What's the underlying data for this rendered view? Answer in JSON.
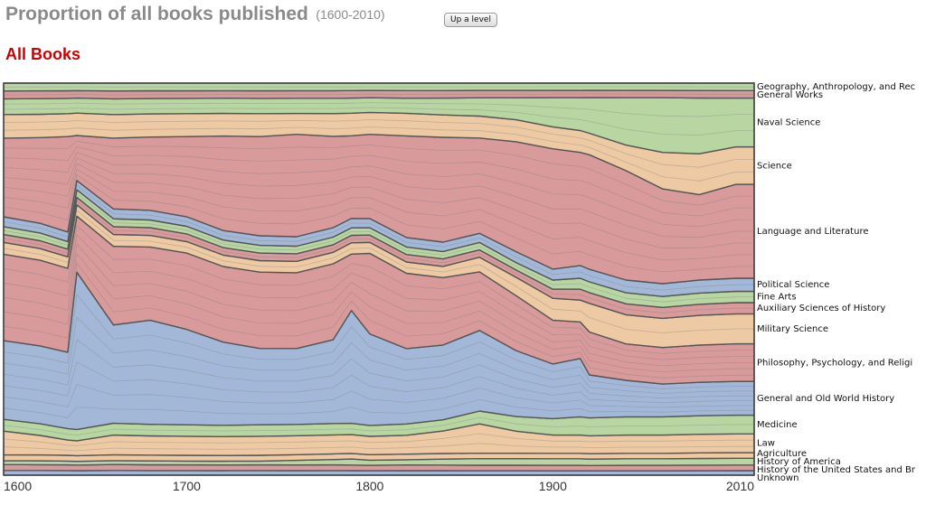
{
  "header": {
    "title": "Proportion of all books published",
    "range": "(1600-2010)",
    "up_button": "Up a level"
  },
  "subtitle": "All Books",
  "chart_data": {
    "type": "area",
    "stacked": true,
    "normalized": true,
    "x_ticks": [
      "1600",
      "1700",
      "1800",
      "1900",
      "2010"
    ],
    "xlim": [
      1600,
      2010
    ],
    "ylim": [
      0,
      1
    ],
    "x": [
      1600,
      1620,
      1635,
      1640,
      1660,
      1680,
      1700,
      1720,
      1740,
      1760,
      1780,
      1790,
      1800,
      1820,
      1840,
      1860,
      1880,
      1900,
      1915,
      1920,
      1940,
      1960,
      1980,
      2000,
      2010
    ],
    "series": [
      {
        "name": "Unknown",
        "color": "#a3b8d8",
        "values": [
          0.012,
          0.012,
          0.012,
          0.012,
          0.012,
          0.012,
          0.012,
          0.012,
          0.012,
          0.012,
          0.012,
          0.012,
          0.012,
          0.012,
          0.012,
          0.012,
          0.012,
          0.012,
          0.012,
          0.012,
          0.012,
          0.012,
          0.012,
          0.012,
          0.012
        ]
      },
      {
        "name": "History of the United States and Br",
        "color": "#d99a9c",
        "values": [
          0.015,
          0.015,
          0.015,
          0.015,
          0.015,
          0.015,
          0.015,
          0.015,
          0.015,
          0.015,
          0.015,
          0.015,
          0.015,
          0.015,
          0.015,
          0.015,
          0.015,
          0.015,
          0.015,
          0.015,
          0.015,
          0.015,
          0.015,
          0.015,
          0.015
        ]
      },
      {
        "name": "History of America",
        "color": "#b8d6a2",
        "values": [
          0.01,
          0.01,
          0.01,
          0.01,
          0.01,
          0.01,
          0.01,
          0.01,
          0.01,
          0.012,
          0.014,
          0.016,
          0.014,
          0.014,
          0.016,
          0.018,
          0.018,
          0.018,
          0.018,
          0.018,
          0.018,
          0.018,
          0.018,
          0.018,
          0.018
        ]
      },
      {
        "name": "Agriculture",
        "color": "#edc9a4",
        "values": [
          0.015,
          0.015,
          0.015,
          0.015,
          0.015,
          0.015,
          0.015,
          0.015,
          0.015,
          0.015,
          0.015,
          0.015,
          0.015,
          0.015,
          0.015,
          0.015,
          0.015,
          0.015,
          0.015,
          0.015,
          0.015,
          0.015,
          0.015,
          0.015,
          0.015
        ]
      },
      {
        "name": "Law",
        "color": "#edc9a4",
        "values": [
          0.06,
          0.05,
          0.04,
          0.04,
          0.05,
          0.05,
          0.05,
          0.05,
          0.05,
          0.05,
          0.05,
          0.05,
          0.05,
          0.05,
          0.06,
          0.08,
          0.06,
          0.05,
          0.05,
          0.05,
          0.05,
          0.05,
          0.05,
          0.05,
          0.05
        ]
      },
      {
        "name": "Medicine",
        "color": "#b8d6a2",
        "values": [
          0.03,
          0.03,
          0.03,
          0.03,
          0.03,
          0.03,
          0.03,
          0.03,
          0.03,
          0.03,
          0.03,
          0.03,
          0.03,
          0.03,
          0.03,
          0.035,
          0.04,
          0.045,
          0.05,
          0.05,
          0.05,
          0.05,
          0.05,
          0.05,
          0.05
        ]
      },
      {
        "name": "General and Old World History",
        "color": "#a3b8d8",
        "values": [
          0.2,
          0.2,
          0.2,
          0.42,
          0.25,
          0.27,
          0.25,
          0.22,
          0.2,
          0.2,
          0.22,
          0.3,
          0.25,
          0.2,
          0.2,
          0.22,
          0.18,
          0.15,
          0.16,
          0.12,
          0.1,
          0.09,
          0.09,
          0.09,
          0.09
        ]
      },
      {
        "name": "Philosophy, Psychology, and Religi",
        "color": "#d99a9c",
        "values": [
          0.22,
          0.22,
          0.22,
          0.15,
          0.2,
          0.19,
          0.2,
          0.2,
          0.2,
          0.2,
          0.2,
          0.15,
          0.22,
          0.2,
          0.18,
          0.16,
          0.15,
          0.12,
          0.1,
          0.12,
          0.1,
          0.1,
          0.1,
          0.1,
          0.1
        ]
      },
      {
        "name": "Military Science",
        "color": "#edc9a4",
        "values": [
          0.03,
          0.03,
          0.03,
          0.03,
          0.03,
          0.03,
          0.03,
          0.03,
          0.03,
          0.03,
          0.03,
          0.03,
          0.03,
          0.03,
          0.03,
          0.04,
          0.05,
          0.06,
          0.06,
          0.08,
          0.08,
          0.08,
          0.08,
          0.08,
          0.08
        ]
      },
      {
        "name": "Auxiliary Sciences of History",
        "color": "#d99a9c",
        "values": [
          0.02,
          0.02,
          0.02,
          0.02,
          0.02,
          0.02,
          0.02,
          0.02,
          0.02,
          0.02,
          0.02,
          0.02,
          0.02,
          0.02,
          0.02,
          0.02,
          0.02,
          0.025,
          0.03,
          0.03,
          0.03,
          0.03,
          0.03,
          0.03,
          0.03
        ]
      },
      {
        "name": "Fine Arts",
        "color": "#b8d6a2",
        "values": [
          0.02,
          0.02,
          0.02,
          0.02,
          0.02,
          0.02,
          0.02,
          0.02,
          0.02,
          0.02,
          0.02,
          0.02,
          0.02,
          0.02,
          0.02,
          0.02,
          0.02,
          0.025,
          0.03,
          0.03,
          0.03,
          0.03,
          0.03,
          0.03,
          0.03
        ]
      },
      {
        "name": "Political Science",
        "color": "#a3b8d8",
        "values": [
          0.025,
          0.025,
          0.025,
          0.025,
          0.025,
          0.025,
          0.025,
          0.025,
          0.025,
          0.025,
          0.025,
          0.025,
          0.025,
          0.025,
          0.025,
          0.025,
          0.03,
          0.03,
          0.035,
          0.035,
          0.035,
          0.035,
          0.035,
          0.035,
          0.035
        ]
      },
      {
        "name": "Language and Literature",
        "color": "#d99a9c",
        "values": [
          0.2,
          0.22,
          0.25,
          0.12,
          0.18,
          0.19,
          0.21,
          0.25,
          0.26,
          0.27,
          0.24,
          0.22,
          0.23,
          0.27,
          0.28,
          0.26,
          0.3,
          0.33,
          0.31,
          0.32,
          0.3,
          0.26,
          0.23,
          0.25,
          0.25
        ]
      },
      {
        "name": "Science",
        "color": "#edc9a4",
        "values": [
          0.06,
          0.06,
          0.06,
          0.06,
          0.06,
          0.06,
          0.06,
          0.06,
          0.06,
          0.055,
          0.06,
          0.06,
          0.06,
          0.06,
          0.06,
          0.06,
          0.06,
          0.06,
          0.06,
          0.06,
          0.07,
          0.1,
          0.11,
          0.1,
          0.1
        ]
      },
      {
        "name": "Naval Science",
        "color": "#b8d6a2",
        "values": [
          0.04,
          0.04,
          0.04,
          0.04,
          0.04,
          0.04,
          0.04,
          0.04,
          0.04,
          0.04,
          0.04,
          0.04,
          0.04,
          0.04,
          0.045,
          0.05,
          0.06,
          0.08,
          0.09,
          0.1,
          0.13,
          0.15,
          0.15,
          0.13,
          0.13
        ]
      },
      {
        "name": "General Works",
        "color": "#d99a9c",
        "values": [
          0.02,
          0.02,
          0.02,
          0.02,
          0.02,
          0.02,
          0.02,
          0.02,
          0.02,
          0.02,
          0.02,
          0.02,
          0.02,
          0.02,
          0.02,
          0.02,
          0.02,
          0.02,
          0.02,
          0.02,
          0.02,
          0.02,
          0.02,
          0.02,
          0.02
        ]
      },
      {
        "name": "Geography, Anthropology, and Rec",
        "color": "#b8d6a2",
        "values": [
          0.02,
          0.02,
          0.02,
          0.02,
          0.02,
          0.02,
          0.02,
          0.02,
          0.02,
          0.02,
          0.02,
          0.02,
          0.02,
          0.02,
          0.02,
          0.02,
          0.02,
          0.02,
          0.02,
          0.02,
          0.02,
          0.02,
          0.02,
          0.02,
          0.02
        ]
      }
    ]
  }
}
